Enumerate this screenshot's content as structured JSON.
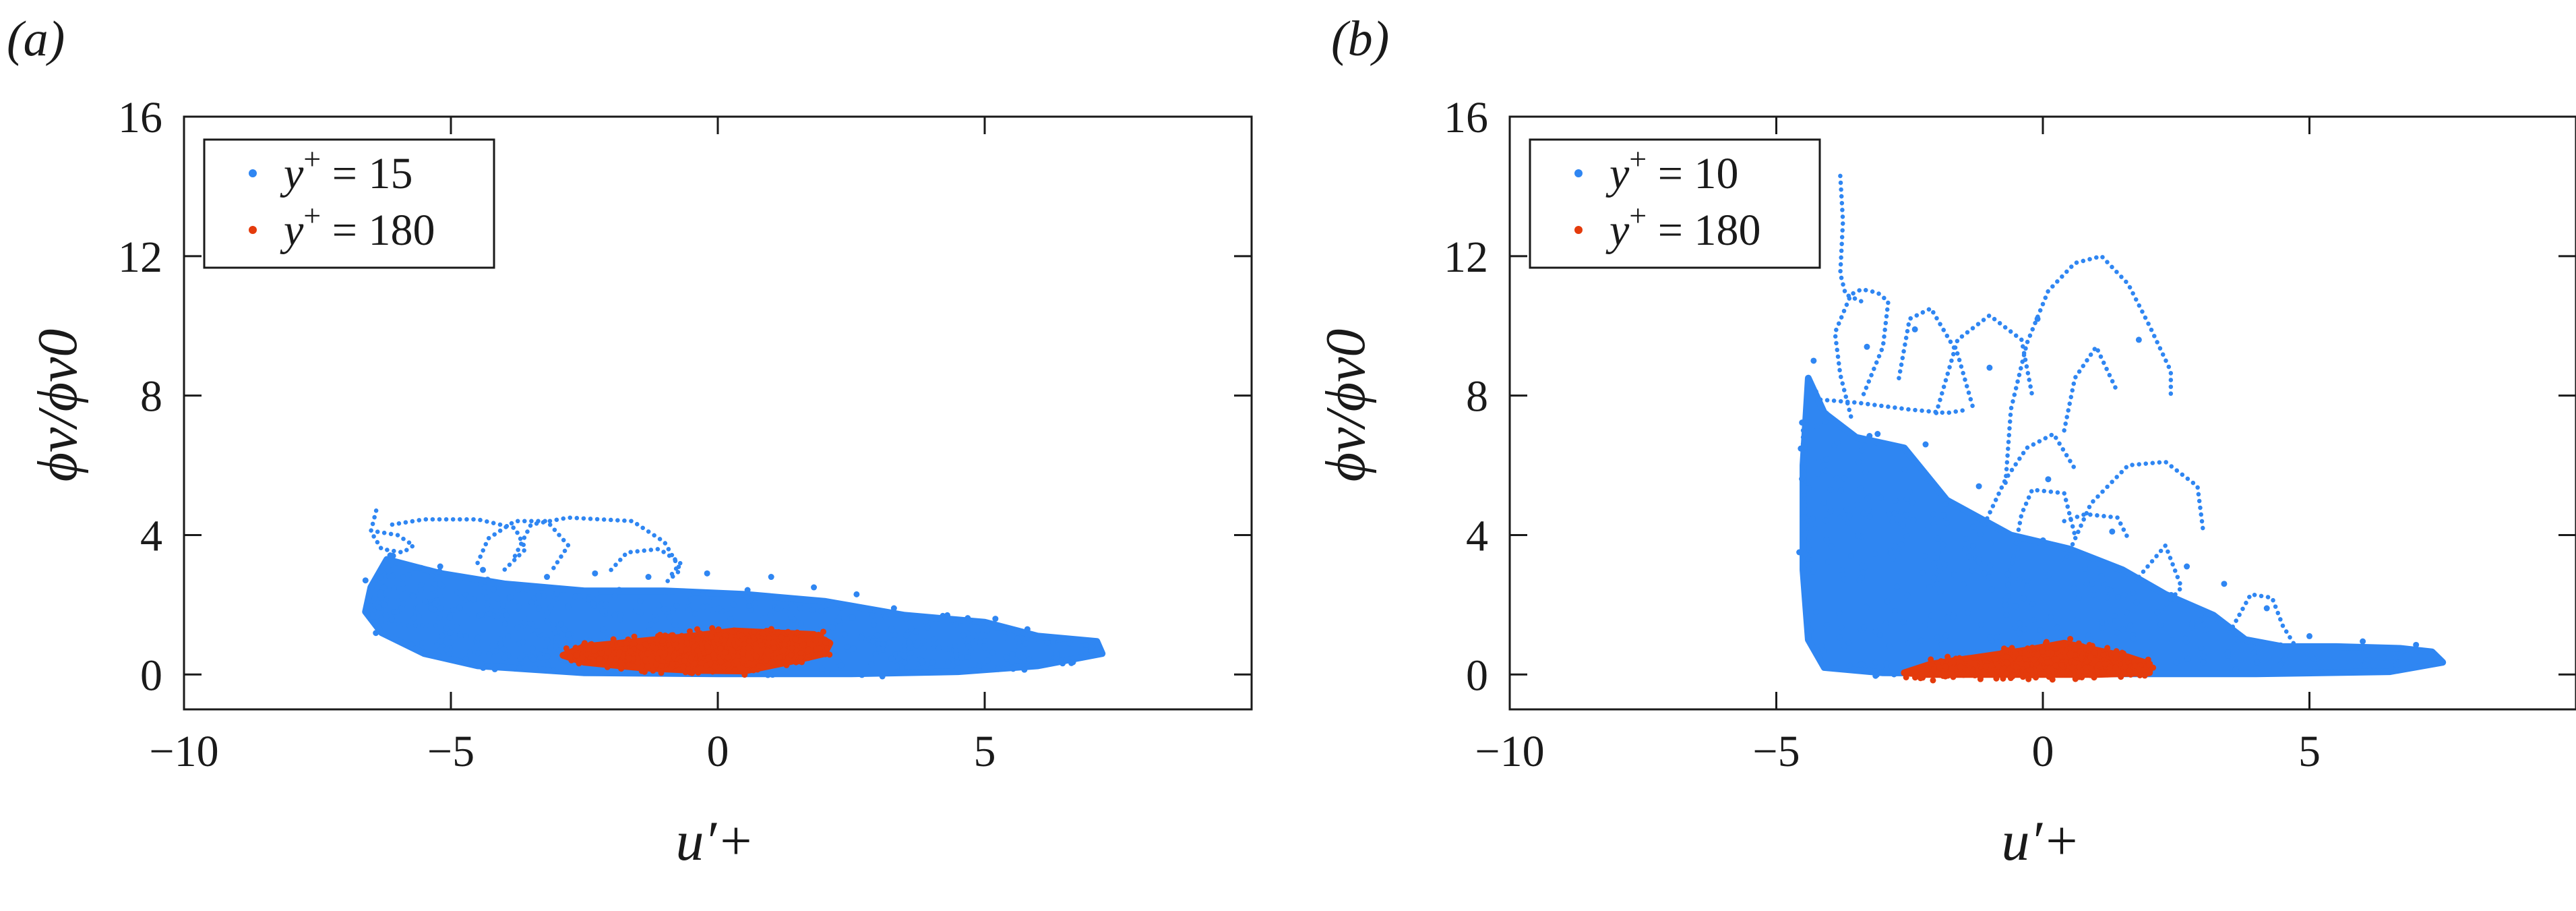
{
  "colors": {
    "series_a": "#2f86f2",
    "series_b": "#e43b0c",
    "axis": "#1a1a1a"
  },
  "chart_data": [
    {
      "type": "scatter",
      "panel_label": "(a)",
      "xlabel": "u′+",
      "ylabel": "ϕv/ϕv0",
      "xlim": [
        -10,
        10
      ],
      "ylim": [
        -1,
        16
      ],
      "xticks": [
        -10,
        -5,
        0,
        5
      ],
      "yticks": [
        0,
        4,
        8,
        12,
        16
      ],
      "legend_position": "top-left",
      "grid": false,
      "series": [
        {
          "name": "y+ = 15",
          "legend_base": "y",
          "legend_sup": "+",
          "legend_value": " = 15",
          "color": "#2f86f2",
          "cloud": [
            [
              -6.5,
              2.5
            ],
            [
              -6.2,
              3.3
            ],
            [
              -5.2,
              2.9
            ],
            [
              -4,
              2.6
            ],
            [
              -2.5,
              2.4
            ],
            [
              -1,
              2.4
            ],
            [
              0.5,
              2.3
            ],
            [
              2,
              2.1
            ],
            [
              3.5,
              1.7
            ],
            [
              5,
              1.5
            ],
            [
              6,
              1.1
            ],
            [
              7.1,
              0.95
            ],
            [
              7.2,
              0.6
            ],
            [
              6,
              0.25
            ],
            [
              4.5,
              0.08
            ],
            [
              2.5,
              0.02
            ],
            [
              0,
              0.02
            ],
            [
              -2.5,
              0.05
            ],
            [
              -4.5,
              0.25
            ],
            [
              -5.5,
              0.6
            ],
            [
              -6.3,
              1.2
            ],
            [
              -6.6,
              1.8
            ]
          ],
          "loops": [
            [
              [
                -6.4,
                4.7
              ],
              [
                -6.5,
                4.1
              ],
              [
                -6.3,
                3.6
              ],
              [
                -5.9,
                3.5
              ],
              [
                -5.7,
                3.7
              ],
              [
                -6,
                4.0
              ],
              [
                -6.4,
                4.1
              ]
            ],
            [
              [
                -6.1,
                4.3
              ],
              [
                -5.5,
                4.45
              ],
              [
                -4.5,
                4.45
              ],
              [
                -3.8,
                4.2
              ],
              [
                -3.6,
                3.6
              ],
              [
                -4,
                3.0
              ]
            ],
            [
              [
                -4.5,
                3.2
              ],
              [
                -4.3,
                3.9
              ],
              [
                -3.8,
                4.4
              ],
              [
                -3.2,
                4.4
              ],
              [
                -2.8,
                3.7
              ],
              [
                -3.1,
                3.0
              ]
            ],
            [
              [
                -3.8,
                3.4
              ],
              [
                -3.5,
                4.3
              ],
              [
                -2.8,
                4.5
              ],
              [
                -1.6,
                4.4
              ],
              [
                -1,
                3.8
              ],
              [
                -0.7,
                3.0
              ],
              [
                -1,
                2.6
              ]
            ],
            [
              [
                -2,
                3.0
              ],
              [
                -1.7,
                3.5
              ],
              [
                -1.1,
                3.6
              ],
              [
                -0.7,
                3.2
              ],
              [
                -0.9,
                2.8
              ]
            ],
            [
              [
                -6.5,
                2.0
              ],
              [
                -6.3,
                1.5
              ],
              [
                -5.8,
                1.4
              ],
              [
                -5.2,
                1.4
              ]
            ]
          ],
          "outliers": [
            [
              -6.3,
              2.2
            ],
            [
              -5.9,
              2.6
            ],
            [
              -5.2,
              3.1
            ],
            [
              -4.4,
              3.0
            ],
            [
              -3.2,
              2.8
            ],
            [
              -2.3,
              2.9
            ],
            [
              -1.3,
              2.8
            ],
            [
              -0.2,
              2.9
            ],
            [
              1,
              2.8
            ],
            [
              1.8,
              2.5
            ],
            [
              2.6,
              2.3
            ],
            [
              3.3,
              1.9
            ],
            [
              4.3,
              1.7
            ],
            [
              5.2,
              1.6
            ],
            [
              5.8,
              1.3
            ],
            [
              6.4,
              1.0
            ],
            [
              6.9,
              0.85
            ],
            [
              7.1,
              0.7
            ],
            [
              -6.6,
              2.7
            ]
          ]
        },
        {
          "name": "y+ = 180",
          "legend_base": "y",
          "legend_sup": "+",
          "legend_value": " = 180",
          "color": "#e43b0c",
          "cloud": [
            [
              -2.9,
              0.55
            ],
            [
              -2.5,
              0.8
            ],
            [
              -1.5,
              0.95
            ],
            [
              -0.5,
              1.1
            ],
            [
              0.3,
              1.25
            ],
            [
              1,
              1.2
            ],
            [
              1.8,
              1.15
            ],
            [
              2.1,
              0.9
            ],
            [
              2,
              0.6
            ],
            [
              1.3,
              0.35
            ],
            [
              0.5,
              0.1
            ],
            [
              -0.5,
              0.12
            ],
            [
              -1.5,
              0.2
            ],
            [
              -2.5,
              0.35
            ]
          ],
          "loops": [],
          "outliers": []
        }
      ]
    },
    {
      "type": "scatter",
      "panel_label": "(b)",
      "xlabel": "u′+",
      "ylabel": "ϕv/ϕv0",
      "xlim": [
        -10,
        10
      ],
      "ylim": [
        -1,
        16
      ],
      "xticks": [
        -10,
        -5,
        0,
        5
      ],
      "yticks": [
        0,
        4,
        8,
        12,
        16
      ],
      "legend_position": "top-left",
      "grid": false,
      "series": [
        {
          "name": "y+ = 10",
          "legend_base": "y",
          "legend_sup": "+",
          "legend_value": " = 10",
          "color": "#2f86f2",
          "cloud": [
            [
              -4.4,
              8.5
            ],
            [
              -4.1,
              7.5
            ],
            [
              -3.5,
              6.8
            ],
            [
              -2.6,
              6.5
            ],
            [
              -1.8,
              5.0
            ],
            [
              -0.6,
              4.0
            ],
            [
              0.5,
              3.6
            ],
            [
              1.5,
              3.0
            ],
            [
              2.3,
              2.3
            ],
            [
              3.2,
              1.7
            ],
            [
              3.8,
              1.0
            ],
            [
              4.5,
              0.8
            ],
            [
              5.5,
              0.8
            ],
            [
              6.7,
              0.75
            ],
            [
              7.3,
              0.65
            ],
            [
              7.5,
              0.35
            ],
            [
              6.5,
              0.08
            ],
            [
              4,
              0.02
            ],
            [
              0,
              0.02
            ],
            [
              -3,
              0.05
            ],
            [
              -4.1,
              0.2
            ],
            [
              -4.4,
              1.0
            ],
            [
              -4.5,
              3.0
            ],
            [
              -4.5,
              6.0
            ]
          ],
          "loops": [
            [
              [
                -3.8,
                14.3
              ],
              [
                -3.75,
                13.0
              ],
              [
                -3.8,
                11.5
              ],
              [
                -3.7,
                10.9
              ],
              [
                -3.4,
                10.7
              ]
            ],
            [
              [
                -3.6,
                7.4
              ],
              [
                -3.8,
                8.6
              ],
              [
                -3.9,
                9.8
              ],
              [
                -3.6,
                10.9
              ],
              [
                -3.4,
                11.05
              ],
              [
                -3.1,
                10.95
              ],
              [
                -2.9,
                10.7
              ],
              [
                -3.0,
                9.4
              ],
              [
                -3.4,
                7.9
              ]
            ],
            [
              [
                -2.7,
                8.5
              ],
              [
                -2.5,
                10.2
              ],
              [
                -2.1,
                10.5
              ],
              [
                -1.6,
                9.2
              ],
              [
                -1.3,
                7.6
              ]
            ],
            [
              [
                -0.7,
                5.5
              ],
              [
                -0.6,
                7.6
              ],
              [
                -0.3,
                9.5
              ],
              [
                0.1,
                11.0
              ],
              [
                0.6,
                11.8
              ],
              [
                1.1,
                12.0
              ],
              [
                1.6,
                11.2
              ],
              [
                2.0,
                10.0
              ],
              [
                2.4,
                8.7
              ],
              [
                2.4,
                8.0
              ]
            ],
            [
              [
                -2.0,
                7.5
              ],
              [
                -1.6,
                9.6
              ],
              [
                -1.0,
                10.3
              ],
              [
                -0.4,
                9.6
              ],
              [
                -0.2,
                8.0
              ]
            ],
            [
              [
                -4.3,
                7.9
              ],
              [
                -3.5,
                7.8
              ],
              [
                -2.5,
                7.6
              ],
              [
                -1.8,
                7.5
              ],
              [
                -1.4,
                7.6
              ]
            ],
            [
              [
                0.4,
                3.2
              ],
              [
                0.9,
                4.9
              ],
              [
                1.6,
                6.0
              ],
              [
                2.3,
                6.1
              ],
              [
                2.9,
                5.4
              ],
              [
                3.0,
                4.2
              ]
            ],
            [
              [
                -0.6,
                3.0
              ],
              [
                -0.4,
                4.6
              ],
              [
                -0.2,
                5.3
              ],
              [
                0.4,
                5.2
              ],
              [
                0.6,
                4.0
              ]
            ],
            [
              [
                1.8,
                2.8
              ],
              [
                2.3,
                3.7
              ],
              [
                2.6,
                2.5
              ],
              [
                2.2,
                1.8
              ]
            ],
            [
              [
                -1.1,
                4.3
              ],
              [
                -0.7,
                5.6
              ],
              [
                -0.3,
                6.5
              ],
              [
                0.2,
                6.9
              ],
              [
                0.6,
                5.9
              ]
            ],
            [
              [
                0.4,
                7.0
              ],
              [
                0.6,
                8.5
              ],
              [
                1.0,
                9.4
              ],
              [
                1.4,
                8.1
              ]
            ],
            [
              [
                3.5,
                1.2
              ],
              [
                3.9,
                2.3
              ],
              [
                4.3,
                2.2
              ],
              [
                4.5,
                1.4
              ],
              [
                4.7,
                0.9
              ]
            ],
            [
              [
                -4.5,
                7.0
              ],
              [
                -4.5,
                5.5
              ],
              [
                -4.4,
                4.0
              ],
              [
                -4.3,
                2.8
              ]
            ],
            [
              [
                0.4,
                4.4
              ],
              [
                0.8,
                4.6
              ],
              [
                1.4,
                4.5
              ],
              [
                1.6,
                3.9
              ]
            ]
          ],
          "outliers": [
            [
              -4.2,
              6.1
            ],
            [
              -3.1,
              6.9
            ],
            [
              -2.2,
              6.6
            ],
            [
              -1.2,
              5.4
            ],
            [
              0.1,
              5.6
            ],
            [
              1.3,
              4.1
            ],
            [
              2.7,
              3.1
            ],
            [
              3.4,
              2.6
            ],
            [
              4.2,
              1.9
            ],
            [
              5.0,
              1.1
            ],
            [
              6.0,
              0.95
            ],
            [
              7.0,
              0.85
            ],
            [
              -4.3,
              9.0
            ],
            [
              -3.3,
              9.4
            ],
            [
              -2.4,
              9.9
            ],
            [
              -1.0,
              8.8
            ],
            [
              -0.1,
              10.2
            ],
            [
              1.8,
              9.6
            ],
            [
              -4.5,
              4.5
            ]
          ]
        },
        {
          "name": "y+ = 180",
          "legend_base": "y",
          "legend_sup": "+",
          "legend_value": " = 180",
          "color": "#e43b0c",
          "cloud": [
            [
              -2.6,
              0.05
            ],
            [
              -2.1,
              0.3
            ],
            [
              -1.2,
              0.5
            ],
            [
              -0.3,
              0.7
            ],
            [
              0.4,
              0.9
            ],
            [
              1.0,
              0.7
            ],
            [
              1.6,
              0.5
            ],
            [
              2.0,
              0.3
            ],
            [
              2.0,
              0.05
            ],
            [
              1.0,
              0.0
            ],
            [
              -1.0,
              0.0
            ],
            [
              -2.2,
              0.0
            ]
          ],
          "loops": [],
          "outliers": []
        }
      ]
    }
  ]
}
